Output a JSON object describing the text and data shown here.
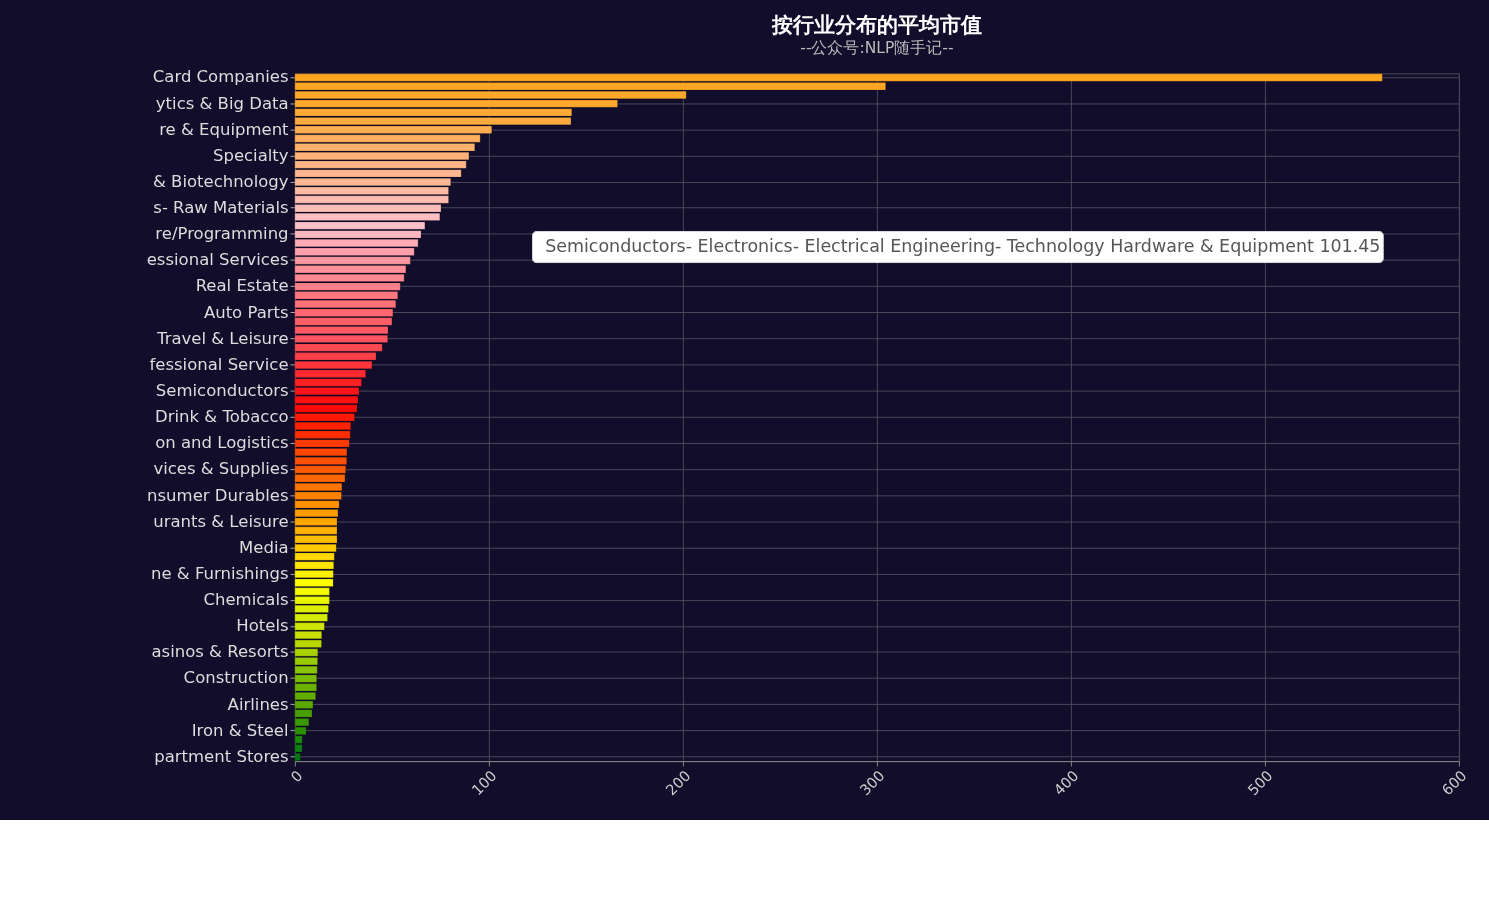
{
  "chart_data": {
    "type": "bar",
    "orientation": "horizontal",
    "title": "按行业分布的平均市值",
    "subtitle": "--公众号:NLP随手记--",
    "categories": [
      "Card Companies",
      null,
      null,
      "ytics & Big Data",
      null,
      null,
      "re & Equipment",
      null,
      null,
      "Specialty",
      null,
      null,
      "& Biotechnology",
      null,
      null,
      "s- Raw Materials",
      null,
      null,
      "re/Programming",
      null,
      null,
      "essional Services",
      null,
      null,
      "Real Estate",
      null,
      null,
      "Auto Parts",
      null,
      null,
      "Travel & Leisure",
      null,
      null,
      "fessional Service",
      null,
      null,
      "Semiconductors",
      null,
      null,
      "Drink & Tobacco",
      null,
      null,
      "on and Logistics",
      null,
      null,
      "vices & Supplies",
      null,
      null,
      "nsumer Durables",
      null,
      null,
      "urants & Leisure",
      null,
      null,
      "Media",
      null,
      null,
      "ne & Furnishings",
      null,
      null,
      "Chemicals",
      null,
      null,
      "Hotels",
      null,
      null,
      "asinos & Resorts",
      null,
      null,
      "Construction",
      null,
      null,
      "Airlines",
      null,
      null,
      "Iron & Steel",
      null,
      null,
      "partment Stores"
    ],
    "values": [
      560.5,
      304.5,
      201.7,
      166.3,
      142.7,
      142.3,
      101.45,
      95.5,
      92.7,
      89.7,
      88.3,
      85.7,
      80.3,
      79.2,
      79.2,
      75.3,
      74.7,
      67,
      65,
      63.5,
      61.5,
      59.5,
      57.2,
      56.3,
      54.3,
      53,
      52,
      50.5,
      50,
      48,
      47.8,
      45,
      41.8,
      39.7,
      36.5,
      34.3,
      33,
      32.5,
      32,
      30.7,
      28.8,
      28.5,
      28,
      26.8,
      26.7,
      26.2,
      25.8,
      24.2,
      24,
      22.8,
      22.2,
      21.7,
      21.7,
      21.7,
      21.3,
      20.3,
      20,
      19.8,
      19.7,
      17.8,
      17.8,
      17.3,
      16.8,
      15.2,
      13.8,
      13.7,
      11.8,
      11.7,
      11.5,
      11.2,
      11.2,
      10.7,
      9.3,
      8.8,
      7.2,
      5.8,
      3.8,
      3.7,
      2.8
    ],
    "colors": [
      "#ffa51f",
      "#ffa623",
      "#ffa728",
      "#ffa82e",
      "#ffaa36",
      "#ffab3e",
      "#ffae50",
      "#ffb05e",
      "#ffb26b",
      "#ffb378",
      "#ffb585",
      "#ffb78f",
      "#ffb896",
      "#ffbaa2",
      "#ffbcae",
      "#ffbdb8",
      "#ffbfc2",
      "#ffc0c8",
      "#ffb8c0",
      "#ffaab4",
      "#ffa0aa",
      "#ff98a2",
      "#ff8f99",
      "#ff8891",
      "#ff8088",
      "#ff7880",
      "#ff7078",
      "#ff6870",
      "#ff6068",
      "#ff5a64",
      "#ff5560",
      "#ff4a54",
      "#ff3f48",
      "#ff353c",
      "#ff2a30",
      "#ff2024",
      "#ff1518",
      "#ff0f10",
      "#ff0a0a",
      "#ff1806",
      "#ff2204",
      "#ff2e02",
      "#ff3a00",
      "#ff4600",
      "#ff5000",
      "#ff5a00",
      "#ff6800",
      "#ff7500",
      "#ff8200",
      "#ff9000",
      "#ff9c00",
      "#ffa600",
      "#ffb000",
      "#ffbd00",
      "#ffca00",
      "#ffd800",
      "#ffe500",
      "#fff200",
      "#ffff00",
      "#f4fa00",
      "#eaf500",
      "#dfef00",
      "#d4ea00",
      "#cee500",
      "#c8e000",
      "#b8d900",
      "#a8d100",
      "#98ca00",
      "#89c200",
      "#7aba00",
      "#6ab100",
      "#60ac00",
      "#5aa800",
      "#48a000",
      "#3a9800",
      "#2a9000",
      "#1a880a",
      "#0d800e",
      "#007a10"
    ],
    "xlim": [
      0,
      600
    ],
    "xticks": [
      0,
      100,
      200,
      300,
      400,
      500,
      600
    ],
    "grid": true,
    "legend": false,
    "annotations": [
      "Semiconductors- Electronics- Electrical Engineering- Technology Hardware & Equipment 101.45"
    ]
  }
}
